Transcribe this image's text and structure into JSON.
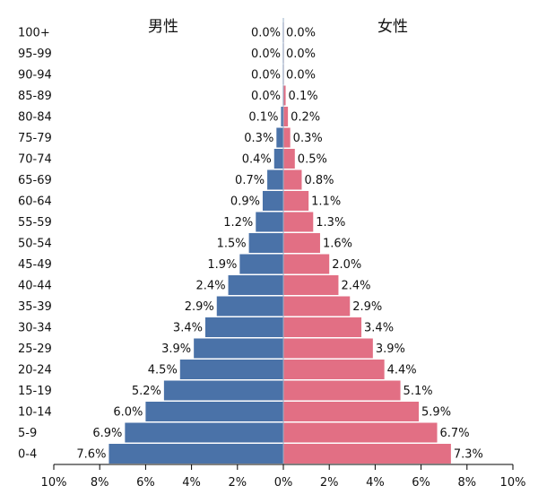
{
  "chart_data": {
    "type": "bar",
    "orientation": "horizontal-pyramid",
    "categories": [
      "0-4",
      "5-9",
      "10-14",
      "15-19",
      "20-24",
      "25-29",
      "30-34",
      "35-39",
      "40-44",
      "45-49",
      "50-54",
      "55-59",
      "60-64",
      "65-69",
      "70-74",
      "75-79",
      "80-84",
      "85-89",
      "90-94",
      "95-99",
      "100+"
    ],
    "series": [
      {
        "name": "男性",
        "side": "left",
        "color": "#4a72a8",
        "values": [
          7.6,
          6.9,
          6.0,
          5.2,
          4.5,
          3.9,
          3.4,
          2.9,
          2.4,
          1.9,
          1.5,
          1.2,
          0.9,
          0.7,
          0.4,
          0.3,
          0.1,
          0.0,
          0.0,
          0.0,
          0.0
        ],
        "labels": [
          "7.6%",
          "6.9%",
          "6.0%",
          "5.2%",
          "4.5%",
          "3.9%",
          "3.4%",
          "2.9%",
          "2.4%",
          "1.9%",
          "1.5%",
          "1.2%",
          "0.9%",
          "0.7%",
          "0.4%",
          "0.3%",
          "0.1%",
          "0.0%",
          "0.0%",
          "0.0%",
          "0.0%"
        ]
      },
      {
        "name": "女性",
        "side": "right",
        "color": "#e26f84",
        "values": [
          7.3,
          6.7,
          5.9,
          5.1,
          4.4,
          3.9,
          3.4,
          2.9,
          2.4,
          2.0,
          1.6,
          1.3,
          1.1,
          0.8,
          0.5,
          0.3,
          0.2,
          0.1,
          0.0,
          0.0,
          0.0
        ],
        "labels": [
          "7.3%",
          "6.7%",
          "5.9%",
          "5.1%",
          "4.4%",
          "3.9%",
          "3.4%",
          "2.9%",
          "2.4%",
          "2.0%",
          "1.6%",
          "1.3%",
          "1.1%",
          "0.8%",
          "0.5%",
          "0.3%",
          "0.2%",
          "0.1%",
          "0.0%",
          "0.0%",
          "0.0%"
        ]
      }
    ],
    "xlim": [
      -10,
      10
    ],
    "x_ticks": [
      -10,
      -8,
      -6,
      -4,
      -2,
      0,
      2,
      4,
      6,
      8,
      10
    ],
    "x_tick_labels": [
      "10%",
      "8%",
      "6%",
      "4%",
      "2%",
      "0%",
      "2%",
      "4%",
      "6%",
      "8%",
      "10%"
    ],
    "grid": false
  }
}
